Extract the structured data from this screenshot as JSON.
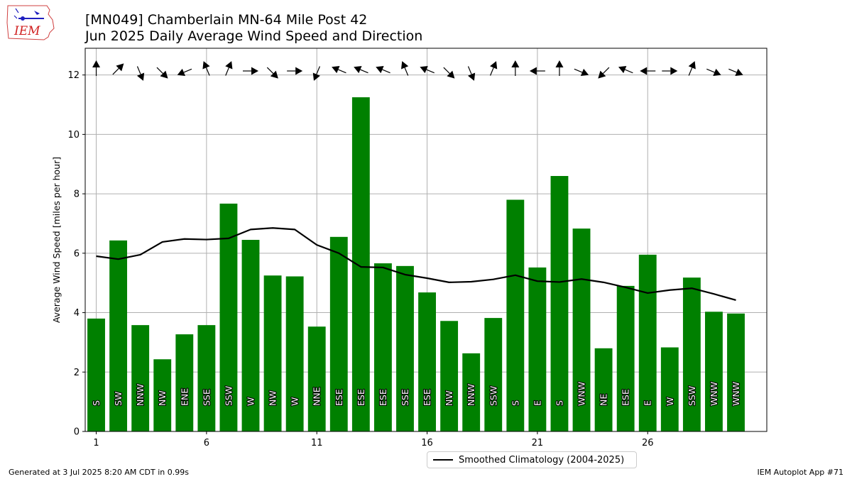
{
  "header": {
    "title_line1": "[MN049] Chamberlain MN-64 Mile Post 42",
    "title_line2": "Jun 2025 Daily Average Wind Speed and Direction",
    "logo_text": "IEM"
  },
  "footer": {
    "generated": "Generated at 3 Jul 2025 8:20 AM CDT in 0.99s",
    "app": "IEM Autoplot App #71"
  },
  "legend": {
    "climatology_label": "Smoothed Climatology (2004-2025)"
  },
  "colors": {
    "bar": "#008000",
    "climatology_line": "#000000",
    "grid": "#b0b0b0"
  },
  "chart_data": {
    "type": "bar",
    "ylabel": "Average Wind Speed [miles per hour]",
    "xlabel": "",
    "ylim": [
      0,
      12.9
    ],
    "xlim": [
      0.5,
      31.4
    ],
    "yticks": [
      0,
      2,
      4,
      6,
      8,
      10,
      12
    ],
    "xticks": [
      1,
      6,
      11,
      16,
      21,
      26
    ],
    "grid": true,
    "legend_position": "bottom-center",
    "days": [
      1,
      2,
      3,
      4,
      5,
      6,
      7,
      8,
      9,
      10,
      11,
      12,
      13,
      14,
      15,
      16,
      17,
      18,
      19,
      20,
      21,
      22,
      23,
      24,
      25,
      26,
      27,
      28,
      29,
      30
    ],
    "values": [
      3.8,
      6.43,
      3.58,
      2.43,
      3.27,
      3.58,
      7.67,
      6.45,
      5.25,
      5.22,
      3.53,
      6.55,
      11.25,
      5.66,
      5.57,
      4.68,
      3.72,
      2.63,
      3.82,
      7.8,
      5.52,
      8.6,
      6.83,
      2.8,
      4.9,
      5.95,
      2.83,
      5.18,
      4.03,
      3.97
    ],
    "directions": [
      "S",
      "SW",
      "NNW",
      "NW",
      "ENE",
      "SSE",
      "SSW",
      "W",
      "NW",
      "W",
      "NNE",
      "ESE",
      "ESE",
      "ESE",
      "SSE",
      "ESE",
      "NW",
      "NNW",
      "SSW",
      "S",
      "E",
      "S",
      "WNW",
      "NE",
      "ESE",
      "E",
      "W",
      "SSW",
      "WNW",
      "WNW"
    ],
    "climatology": {
      "name": "Smoothed Climatology (2004-2025)",
      "values": [
        5.9,
        5.8,
        5.95,
        6.38,
        6.48,
        6.46,
        6.5,
        6.8,
        6.85,
        6.8,
        6.28,
        6.0,
        5.54,
        5.52,
        5.28,
        5.16,
        5.02,
        5.04,
        5.12,
        5.26,
        5.06,
        5.03,
        5.13,
        5.02,
        4.85,
        4.66,
        4.76,
        4.82,
        4.63,
        4.42
      ]
    }
  }
}
